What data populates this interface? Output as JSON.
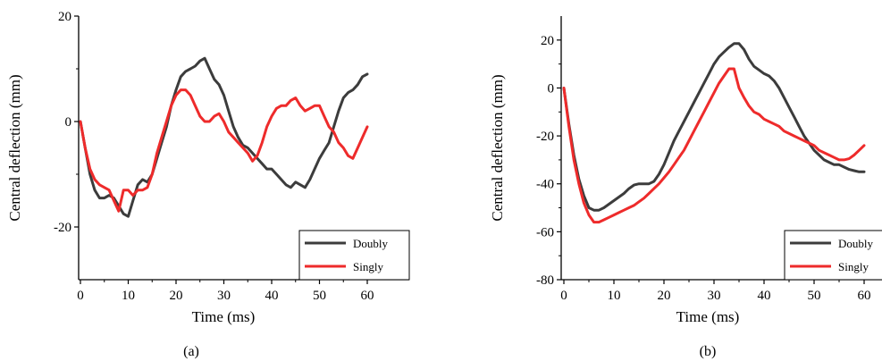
{
  "chart_data": [
    {
      "type": "line",
      "caption": "(a)",
      "xlabel": "Time (ms)",
      "ylabel": "Central deflection (mm)",
      "xlim": [
        0,
        65
      ],
      "ylim": [
        -30,
        20
      ],
      "xticks": [
        "0",
        "10",
        "20",
        "30",
        "40",
        "50",
        "60"
      ],
      "yticks": [
        "20",
        "0",
        "-20"
      ],
      "ytick_values": [
        20,
        0,
        -20
      ],
      "grid": false,
      "legend_position": "bottom-right",
      "series": [
        {
          "name": "Doubly",
          "color": "#3c3c3c",
          "points": [
            [
              0,
              0
            ],
            [
              1,
              -5
            ],
            [
              2,
              -10
            ],
            [
              3,
              -13
            ],
            [
              4,
              -14.5
            ],
            [
              5,
              -14.5
            ],
            [
              6,
              -14
            ],
            [
              7,
              -14.5
            ],
            [
              8,
              -16
            ],
            [
              9,
              -17.5
            ],
            [
              10,
              -18
            ],
            [
              11,
              -15
            ],
            [
              12,
              -12
            ],
            [
              13,
              -11
            ],
            [
              14,
              -11.5
            ],
            [
              15,
              -10
            ],
            [
              16,
              -7
            ],
            [
              17,
              -4
            ],
            [
              18,
              -1
            ],
            [
              19,
              3
            ],
            [
              20,
              6
            ],
            [
              21,
              8.5
            ],
            [
              22,
              9.5
            ],
            [
              23,
              10
            ],
            [
              24,
              10.5
            ],
            [
              25,
              11.5
            ],
            [
              26,
              12
            ],
            [
              27,
              10
            ],
            [
              28,
              8
            ],
            [
              29,
              7
            ],
            [
              30,
              5
            ],
            [
              31,
              2
            ],
            [
              32,
              -1
            ],
            [
              33,
              -3
            ],
            [
              34,
              -4.5
            ],
            [
              35,
              -5
            ],
            [
              36,
              -6
            ],
            [
              37,
              -7
            ],
            [
              38,
              -8
            ],
            [
              39,
              -9
            ],
            [
              40,
              -9
            ],
            [
              41,
              -10
            ],
            [
              42,
              -11
            ],
            [
              43,
              -12
            ],
            [
              44,
              -12.5
            ],
            [
              45,
              -11.5
            ],
            [
              46,
              -12
            ],
            [
              47,
              -12.5
            ],
            [
              48,
              -11
            ],
            [
              49,
              -9
            ],
            [
              50,
              -7
            ],
            [
              51,
              -5.5
            ],
            [
              52,
              -4
            ],
            [
              53,
              -1
            ],
            [
              54,
              2
            ],
            [
              55,
              4.5
            ],
            [
              56,
              5.5
            ],
            [
              57,
              6
            ],
            [
              58,
              7
            ],
            [
              59,
              8.5
            ],
            [
              60,
              9
            ]
          ]
        },
        {
          "name": "Singly",
          "color": "#ee2b2b",
          "points": [
            [
              0,
              0
            ],
            [
              1,
              -5
            ],
            [
              2,
              -9
            ],
            [
              3,
              -11
            ],
            [
              4,
              -12
            ],
            [
              5,
              -12.5
            ],
            [
              6,
              -13
            ],
            [
              7,
              -15
            ],
            [
              8,
              -17
            ],
            [
              9,
              -13
            ],
            [
              10,
              -13
            ],
            [
              11,
              -14
            ],
            [
              12,
              -13
            ],
            [
              13,
              -13
            ],
            [
              14,
              -12.5
            ],
            [
              15,
              -10
            ],
            [
              16,
              -6
            ],
            [
              17,
              -3
            ],
            [
              18,
              0
            ],
            [
              19,
              3
            ],
            [
              20,
              5
            ],
            [
              21,
              6
            ],
            [
              22,
              6
            ],
            [
              23,
              5
            ],
            [
              24,
              3
            ],
            [
              25,
              1
            ],
            [
              26,
              0
            ],
            [
              27,
              0
            ],
            [
              28,
              1
            ],
            [
              29,
              1.5
            ],
            [
              30,
              0
            ],
            [
              31,
              -2
            ],
            [
              32,
              -3
            ],
            [
              33,
              -4
            ],
            [
              34,
              -5
            ],
            [
              35,
              -6
            ],
            [
              36,
              -7.5
            ],
            [
              37,
              -6.5
            ],
            [
              38,
              -4
            ],
            [
              39,
              -1
            ],
            [
              40,
              1
            ],
            [
              41,
              2.5
            ],
            [
              42,
              3
            ],
            [
              43,
              3
            ],
            [
              44,
              4
            ],
            [
              45,
              4.5
            ],
            [
              46,
              3
            ],
            [
              47,
              2
            ],
            [
              48,
              2.5
            ],
            [
              49,
              3
            ],
            [
              50,
              3
            ],
            [
              51,
              1
            ],
            [
              52,
              -1
            ],
            [
              53,
              -2
            ],
            [
              54,
              -4
            ],
            [
              55,
              -5
            ],
            [
              56,
              -6.5
            ],
            [
              57,
              -7
            ],
            [
              58,
              -5
            ],
            [
              59,
              -3
            ],
            [
              60,
              -1
            ]
          ]
        }
      ]
    },
    {
      "type": "line",
      "caption": "(b)",
      "xlabel": "Time (ms)",
      "ylabel": "Central deflection (mm)",
      "xlim": [
        0,
        63
      ],
      "ylim": [
        -80,
        30
      ],
      "xticks": [
        "0",
        "10",
        "20",
        "30",
        "40",
        "50",
        "60"
      ],
      "yticks": [
        "20",
        "0",
        "-20",
        "-40",
        "-60",
        "-80"
      ],
      "ytick_values": [
        20,
        0,
        -20,
        -40,
        -60,
        -80
      ],
      "grid": false,
      "legend_position": "bottom-right",
      "series": [
        {
          "name": "Doubly",
          "color": "#3c3c3c",
          "points": [
            [
              0,
              0
            ],
            [
              1,
              -15
            ],
            [
              2,
              -28
            ],
            [
              3,
              -38
            ],
            [
              4,
              -45
            ],
            [
              5,
              -50
            ],
            [
              6,
              -51
            ],
            [
              7,
              -51
            ],
            [
              8,
              -50
            ],
            [
              9,
              -48.5
            ],
            [
              10,
              -47
            ],
            [
              11,
              -45.5
            ],
            [
              12,
              -44
            ],
            [
              13,
              -42
            ],
            [
              14,
              -40.5
            ],
            [
              15,
              -40
            ],
            [
              16,
              -40
            ],
            [
              17,
              -40
            ],
            [
              18,
              -39
            ],
            [
              19,
              -36
            ],
            [
              20,
              -32
            ],
            [
              21,
              -27
            ],
            [
              22,
              -22
            ],
            [
              23,
              -18
            ],
            [
              24,
              -14
            ],
            [
              25,
              -10
            ],
            [
              26,
              -6
            ],
            [
              27,
              -2
            ],
            [
              28,
              2
            ],
            [
              29,
              6
            ],
            [
              30,
              10
            ],
            [
              31,
              13
            ],
            [
              32,
              15
            ],
            [
              33,
              17
            ],
            [
              34,
              18.5
            ],
            [
              35,
              18.5
            ],
            [
              36,
              16
            ],
            [
              37,
              12
            ],
            [
              38,
              9
            ],
            [
              39,
              7.5
            ],
            [
              40,
              6
            ],
            [
              41,
              5
            ],
            [
              42,
              3
            ],
            [
              43,
              0
            ],
            [
              44,
              -4
            ],
            [
              45,
              -8
            ],
            [
              46,
              -12
            ],
            [
              47,
              -16
            ],
            [
              48,
              -20
            ],
            [
              49,
              -23
            ],
            [
              50,
              -26
            ],
            [
              51,
              -28
            ],
            [
              52,
              -30
            ],
            [
              53,
              -31
            ],
            [
              54,
              -32
            ],
            [
              55,
              -32
            ],
            [
              56,
              -33
            ],
            [
              57,
              -34
            ],
            [
              58,
              -34.5
            ],
            [
              59,
              -35
            ],
            [
              60,
              -35
            ]
          ]
        },
        {
          "name": "Singly",
          "color": "#ee2b2b",
          "points": [
            [
              0,
              0
            ],
            [
              1,
              -16
            ],
            [
              2,
              -30
            ],
            [
              3,
              -40
            ],
            [
              4,
              -48
            ],
            [
              5,
              -53
            ],
            [
              6,
              -56
            ],
            [
              7,
              -56
            ],
            [
              8,
              -55
            ],
            [
              9,
              -54
            ],
            [
              10,
              -53
            ],
            [
              11,
              -52
            ],
            [
              12,
              -51
            ],
            [
              13,
              -50
            ],
            [
              14,
              -49
            ],
            [
              15,
              -47.5
            ],
            [
              16,
              -46
            ],
            [
              17,
              -44
            ],
            [
              18,
              -42
            ],
            [
              19,
              -40
            ],
            [
              20,
              -37.5
            ],
            [
              21,
              -35
            ],
            [
              22,
              -32
            ],
            [
              23,
              -29
            ],
            [
              24,
              -26
            ],
            [
              25,
              -22
            ],
            [
              26,
              -18
            ],
            [
              27,
              -14
            ],
            [
              28,
              -10
            ],
            [
              29,
              -6
            ],
            [
              30,
              -2
            ],
            [
              31,
              2
            ],
            [
              32,
              5
            ],
            [
              33,
              8
            ],
            [
              34,
              8
            ],
            [
              35,
              0
            ],
            [
              36,
              -4
            ],
            [
              37,
              -7.5
            ],
            [
              38,
              -10
            ],
            [
              39,
              -11
            ],
            [
              40,
              -13
            ],
            [
              41,
              -14
            ],
            [
              42,
              -15
            ],
            [
              43,
              -16
            ],
            [
              44,
              -18
            ],
            [
              45,
              -19
            ],
            [
              46,
              -20
            ],
            [
              47,
              -21
            ],
            [
              48,
              -22
            ],
            [
              49,
              -23
            ],
            [
              50,
              -24
            ],
            [
              51,
              -26
            ],
            [
              52,
              -27
            ],
            [
              53,
              -28
            ],
            [
              54,
              -29
            ],
            [
              55,
              -30
            ],
            [
              56,
              -30
            ],
            [
              57,
              -29.5
            ],
            [
              58,
              -28
            ],
            [
              59,
              -26
            ],
            [
              60,
              -24
            ]
          ]
        }
      ]
    }
  ]
}
